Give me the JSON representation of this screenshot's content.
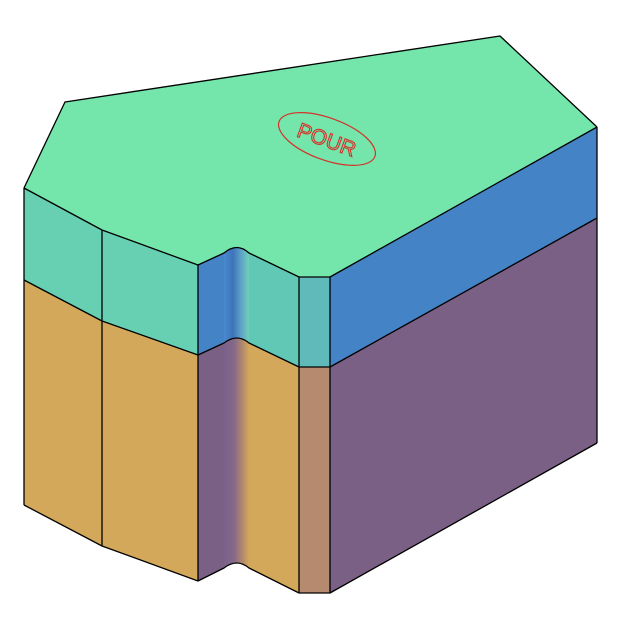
{
  "model": {
    "top_label": "POUR"
  },
  "colors": {
    "background": "#ffffff",
    "top_face": "#74e6ac",
    "upper_front_face": "#67cfb2",
    "upper_notch_face": "#62c8b6",
    "upper_right_face": "#4383c6",
    "upper_side_face": "#5fbab9",
    "lower_front_face": "#d4a85a",
    "lower_right_face": "#7a6085",
    "lower_side_face": "#b58a6e",
    "edge": "#000000",
    "label": "#d4322a"
  }
}
